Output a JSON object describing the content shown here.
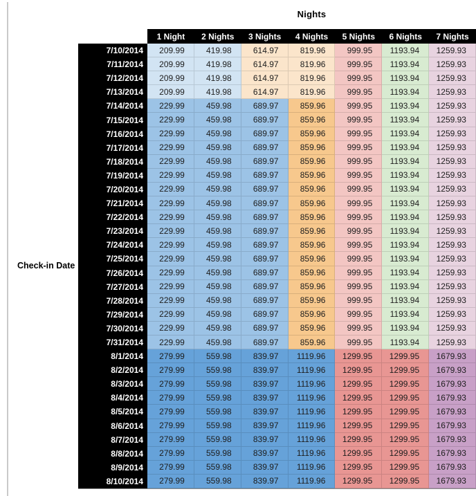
{
  "table": {
    "title": "Nights",
    "row_axis_label": "Check-in Date",
    "columns": [
      "1 Night",
      "2 Nights",
      "3 Nights",
      "4 Nights",
      "5 Nights",
      "6 Nights",
      "7 Nights"
    ],
    "palette": {
      "header_bg": "#000000",
      "header_text": "#ffffff",
      "value_text": "#1d1d1d",
      "rule_gray": "#c9c9c9",
      "pale_blue": "#d2e4f3",
      "pale_orange": "#fbe5cb",
      "pale_pink": "#f3c6c3",
      "pale_green": "#d8ebd1",
      "pale_lavender": "#e8d3e0",
      "mid_blue": "#9cc3e6",
      "mid_orange": "#f7c88d",
      "deep_blue": "#66a2d9",
      "salmon_red": "#e89693",
      "plum": "#c8a0c7"
    },
    "bands": [
      {
        "cell_colors": [
          "pale_blue",
          "pale_blue",
          "pale_orange",
          "pale_orange",
          "pale_pink",
          "pale_green",
          "pale_lavender"
        ]
      },
      {
        "cell_colors": [
          "mid_blue",
          "mid_blue",
          "mid_blue",
          "mid_orange",
          "pale_pink",
          "pale_green",
          "pale_lavender"
        ]
      },
      {
        "cell_colors": [
          "deep_blue",
          "deep_blue",
          "deep_blue",
          "deep_blue",
          "salmon_red",
          "salmon_red",
          "plum"
        ]
      }
    ],
    "rows": [
      {
        "date": "7/10/2014",
        "band": 0,
        "values": [
          "209.99",
          "419.98",
          "614.97",
          "819.96",
          "999.95",
          "1193.94",
          "1259.93"
        ]
      },
      {
        "date": "7/11/2014",
        "band": 0,
        "values": [
          "209.99",
          "419.98",
          "614.97",
          "819.96",
          "999.95",
          "1193.94",
          "1259.93"
        ]
      },
      {
        "date": "7/12/2014",
        "band": 0,
        "values": [
          "209.99",
          "419.98",
          "614.97",
          "819.96",
          "999.95",
          "1193.94",
          "1259.93"
        ]
      },
      {
        "date": "7/13/2014",
        "band": 0,
        "values": [
          "209.99",
          "419.98",
          "614.97",
          "819.96",
          "999.95",
          "1193.94",
          "1259.93"
        ]
      },
      {
        "date": "7/14/2014",
        "band": 1,
        "values": [
          "229.99",
          "459.98",
          "689.97",
          "859.96",
          "999.95",
          "1193.94",
          "1259.93"
        ]
      },
      {
        "date": "7/15/2014",
        "band": 1,
        "values": [
          "229.99",
          "459.98",
          "689.97",
          "859.96",
          "999.95",
          "1193.94",
          "1259.93"
        ]
      },
      {
        "date": "7/16/2014",
        "band": 1,
        "values": [
          "229.99",
          "459.98",
          "689.97",
          "859.96",
          "999.95",
          "1193.94",
          "1259.93"
        ]
      },
      {
        "date": "7/17/2014",
        "band": 1,
        "values": [
          "229.99",
          "459.98",
          "689.97",
          "859.96",
          "999.95",
          "1193.94",
          "1259.93"
        ]
      },
      {
        "date": "7/18/2014",
        "band": 1,
        "values": [
          "229.99",
          "459.98",
          "689.97",
          "859.96",
          "999.95",
          "1193.94",
          "1259.93"
        ]
      },
      {
        "date": "7/19/2014",
        "band": 1,
        "values": [
          "229.99",
          "459.98",
          "689.97",
          "859.96",
          "999.95",
          "1193.94",
          "1259.93"
        ]
      },
      {
        "date": "7/20/2014",
        "band": 1,
        "values": [
          "229.99",
          "459.98",
          "689.97",
          "859.96",
          "999.95",
          "1193.94",
          "1259.93"
        ]
      },
      {
        "date": "7/21/2014",
        "band": 1,
        "values": [
          "229.99",
          "459.98",
          "689.97",
          "859.96",
          "999.95",
          "1193.94",
          "1259.93"
        ]
      },
      {
        "date": "7/22/2014",
        "band": 1,
        "values": [
          "229.99",
          "459.98",
          "689.97",
          "859.96",
          "999.95",
          "1193.94",
          "1259.93"
        ]
      },
      {
        "date": "7/23/2014",
        "band": 1,
        "values": [
          "229.99",
          "459.98",
          "689.97",
          "859.96",
          "999.95",
          "1193.94",
          "1259.93"
        ]
      },
      {
        "date": "7/24/2014",
        "band": 1,
        "values": [
          "229.99",
          "459.98",
          "689.97",
          "859.96",
          "999.95",
          "1193.94",
          "1259.93"
        ]
      },
      {
        "date": "7/25/2014",
        "band": 1,
        "values": [
          "229.99",
          "459.98",
          "689.97",
          "859.96",
          "999.95",
          "1193.94",
          "1259.93"
        ]
      },
      {
        "date": "7/26/2014",
        "band": 1,
        "values": [
          "229.99",
          "459.98",
          "689.97",
          "859.96",
          "999.95",
          "1193.94",
          "1259.93"
        ]
      },
      {
        "date": "7/27/2014",
        "band": 1,
        "values": [
          "229.99",
          "459.98",
          "689.97",
          "859.96",
          "999.95",
          "1193.94",
          "1259.93"
        ]
      },
      {
        "date": "7/28/2014",
        "band": 1,
        "values": [
          "229.99",
          "459.98",
          "689.97",
          "859.96",
          "999.95",
          "1193.94",
          "1259.93"
        ]
      },
      {
        "date": "7/29/2014",
        "band": 1,
        "values": [
          "229.99",
          "459.98",
          "689.97",
          "859.96",
          "999.95",
          "1193.94",
          "1259.93"
        ]
      },
      {
        "date": "7/30/2014",
        "band": 1,
        "values": [
          "229.99",
          "459.98",
          "689.97",
          "859.96",
          "999.95",
          "1193.94",
          "1259.93"
        ]
      },
      {
        "date": "7/31/2014",
        "band": 1,
        "values": [
          "229.99",
          "459.98",
          "689.97",
          "859.96",
          "999.95",
          "1193.94",
          "1259.93"
        ]
      },
      {
        "date": "8/1/2014",
        "band": 2,
        "values": [
          "279.99",
          "559.98",
          "839.97",
          "1119.96",
          "1299.95",
          "1299.95",
          "1679.93"
        ]
      },
      {
        "date": "8/2/2014",
        "band": 2,
        "values": [
          "279.99",
          "559.98",
          "839.97",
          "1119.96",
          "1299.95",
          "1299.95",
          "1679.93"
        ]
      },
      {
        "date": "8/3/2014",
        "band": 2,
        "values": [
          "279.99",
          "559.98",
          "839.97",
          "1119.96",
          "1299.95",
          "1299.95",
          "1679.93"
        ]
      },
      {
        "date": "8/4/2014",
        "band": 2,
        "values": [
          "279.99",
          "559.98",
          "839.97",
          "1119.96",
          "1299.95",
          "1299.95",
          "1679.93"
        ]
      },
      {
        "date": "8/5/2014",
        "band": 2,
        "values": [
          "279.99",
          "559.98",
          "839.97",
          "1119.96",
          "1299.95",
          "1299.95",
          "1679.93"
        ]
      },
      {
        "date": "8/6/2014",
        "band": 2,
        "values": [
          "279.99",
          "559.98",
          "839.97",
          "1119.96",
          "1299.95",
          "1299.95",
          "1679.93"
        ]
      },
      {
        "date": "8/7/2014",
        "band": 2,
        "values": [
          "279.99",
          "559.98",
          "839.97",
          "1119.96",
          "1299.95",
          "1299.95",
          "1679.93"
        ]
      },
      {
        "date": "8/8/2014",
        "band": 2,
        "values": [
          "279.99",
          "559.98",
          "839.97",
          "1119.96",
          "1299.95",
          "1299.95",
          "1679.93"
        ]
      },
      {
        "date": "8/9/2014",
        "band": 2,
        "values": [
          "279.99",
          "559.98",
          "839.97",
          "1119.96",
          "1299.95",
          "1299.95",
          "1679.93"
        ]
      },
      {
        "date": "8/10/2014",
        "band": 2,
        "values": [
          "279.99",
          "559.98",
          "839.97",
          "1119.96",
          "1299.95",
          "1299.95",
          "1679.93"
        ]
      }
    ]
  }
}
